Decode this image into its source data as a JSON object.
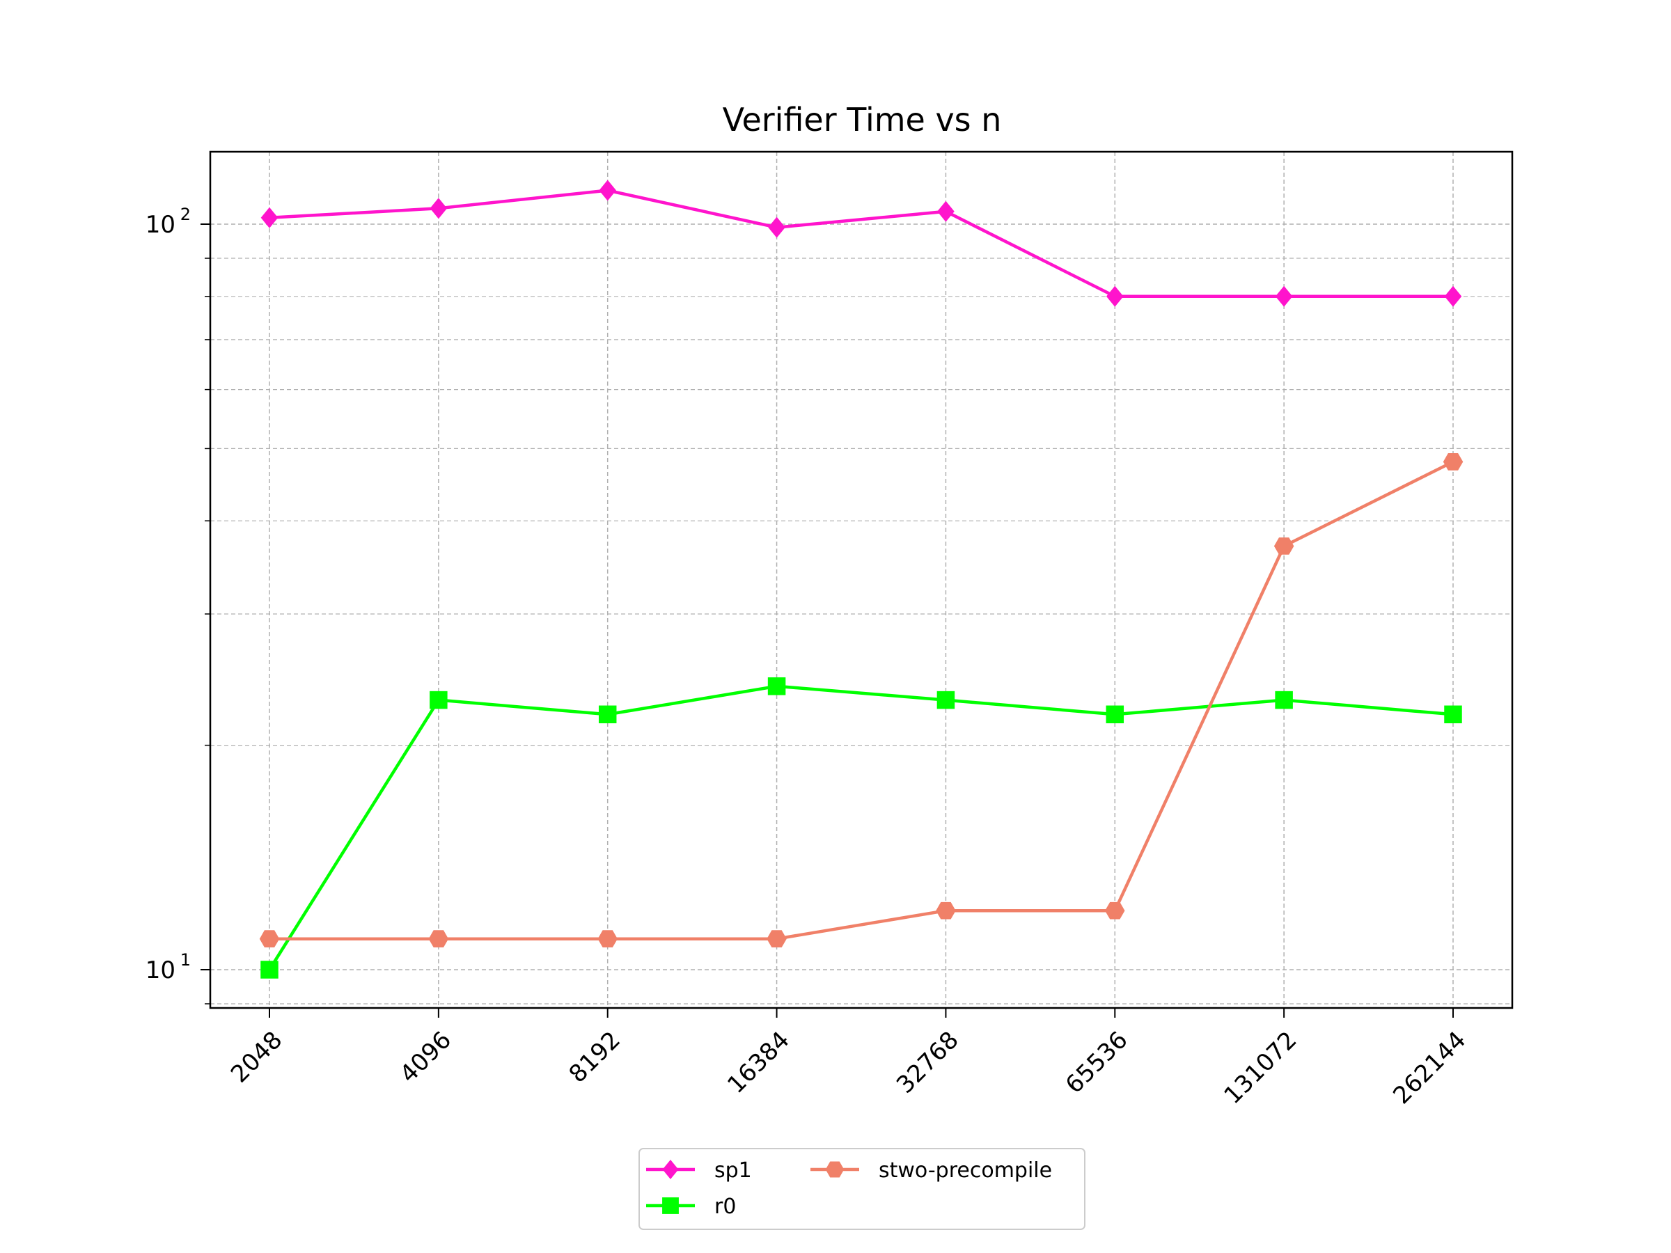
{
  "chart_data": {
    "type": "line",
    "title": "Verifier Time vs n",
    "xlabel": "",
    "ylabel": "",
    "y_scale": "log",
    "ylim": [
      9,
      120
    ],
    "grid": true,
    "legend_position": "bottom-center",
    "categories": [
      "2048",
      "4096",
      "8192",
      "16384",
      "32768",
      "65536",
      "131072",
      "262144"
    ],
    "y_ticks": [
      {
        "value": 10,
        "base": "10",
        "exp": "1"
      },
      {
        "value": 100,
        "base": "10",
        "exp": "2"
      }
    ],
    "series": [
      {
        "name": "sp1",
        "color": "#ff14cc",
        "marker": "diamond",
        "values": [
          102,
          105,
          111,
          99,
          104,
          80,
          80,
          80
        ]
      },
      {
        "name": "r0",
        "color": "#00ff00",
        "marker": "square",
        "values": [
          10,
          23,
          22,
          24,
          23,
          22,
          23,
          22
        ]
      },
      {
        "name": "stwo-precompile",
        "color": "#f08068",
        "marker": "hexagon",
        "values": [
          11,
          11,
          11,
          11,
          12,
          12,
          37,
          48
        ]
      }
    ]
  }
}
